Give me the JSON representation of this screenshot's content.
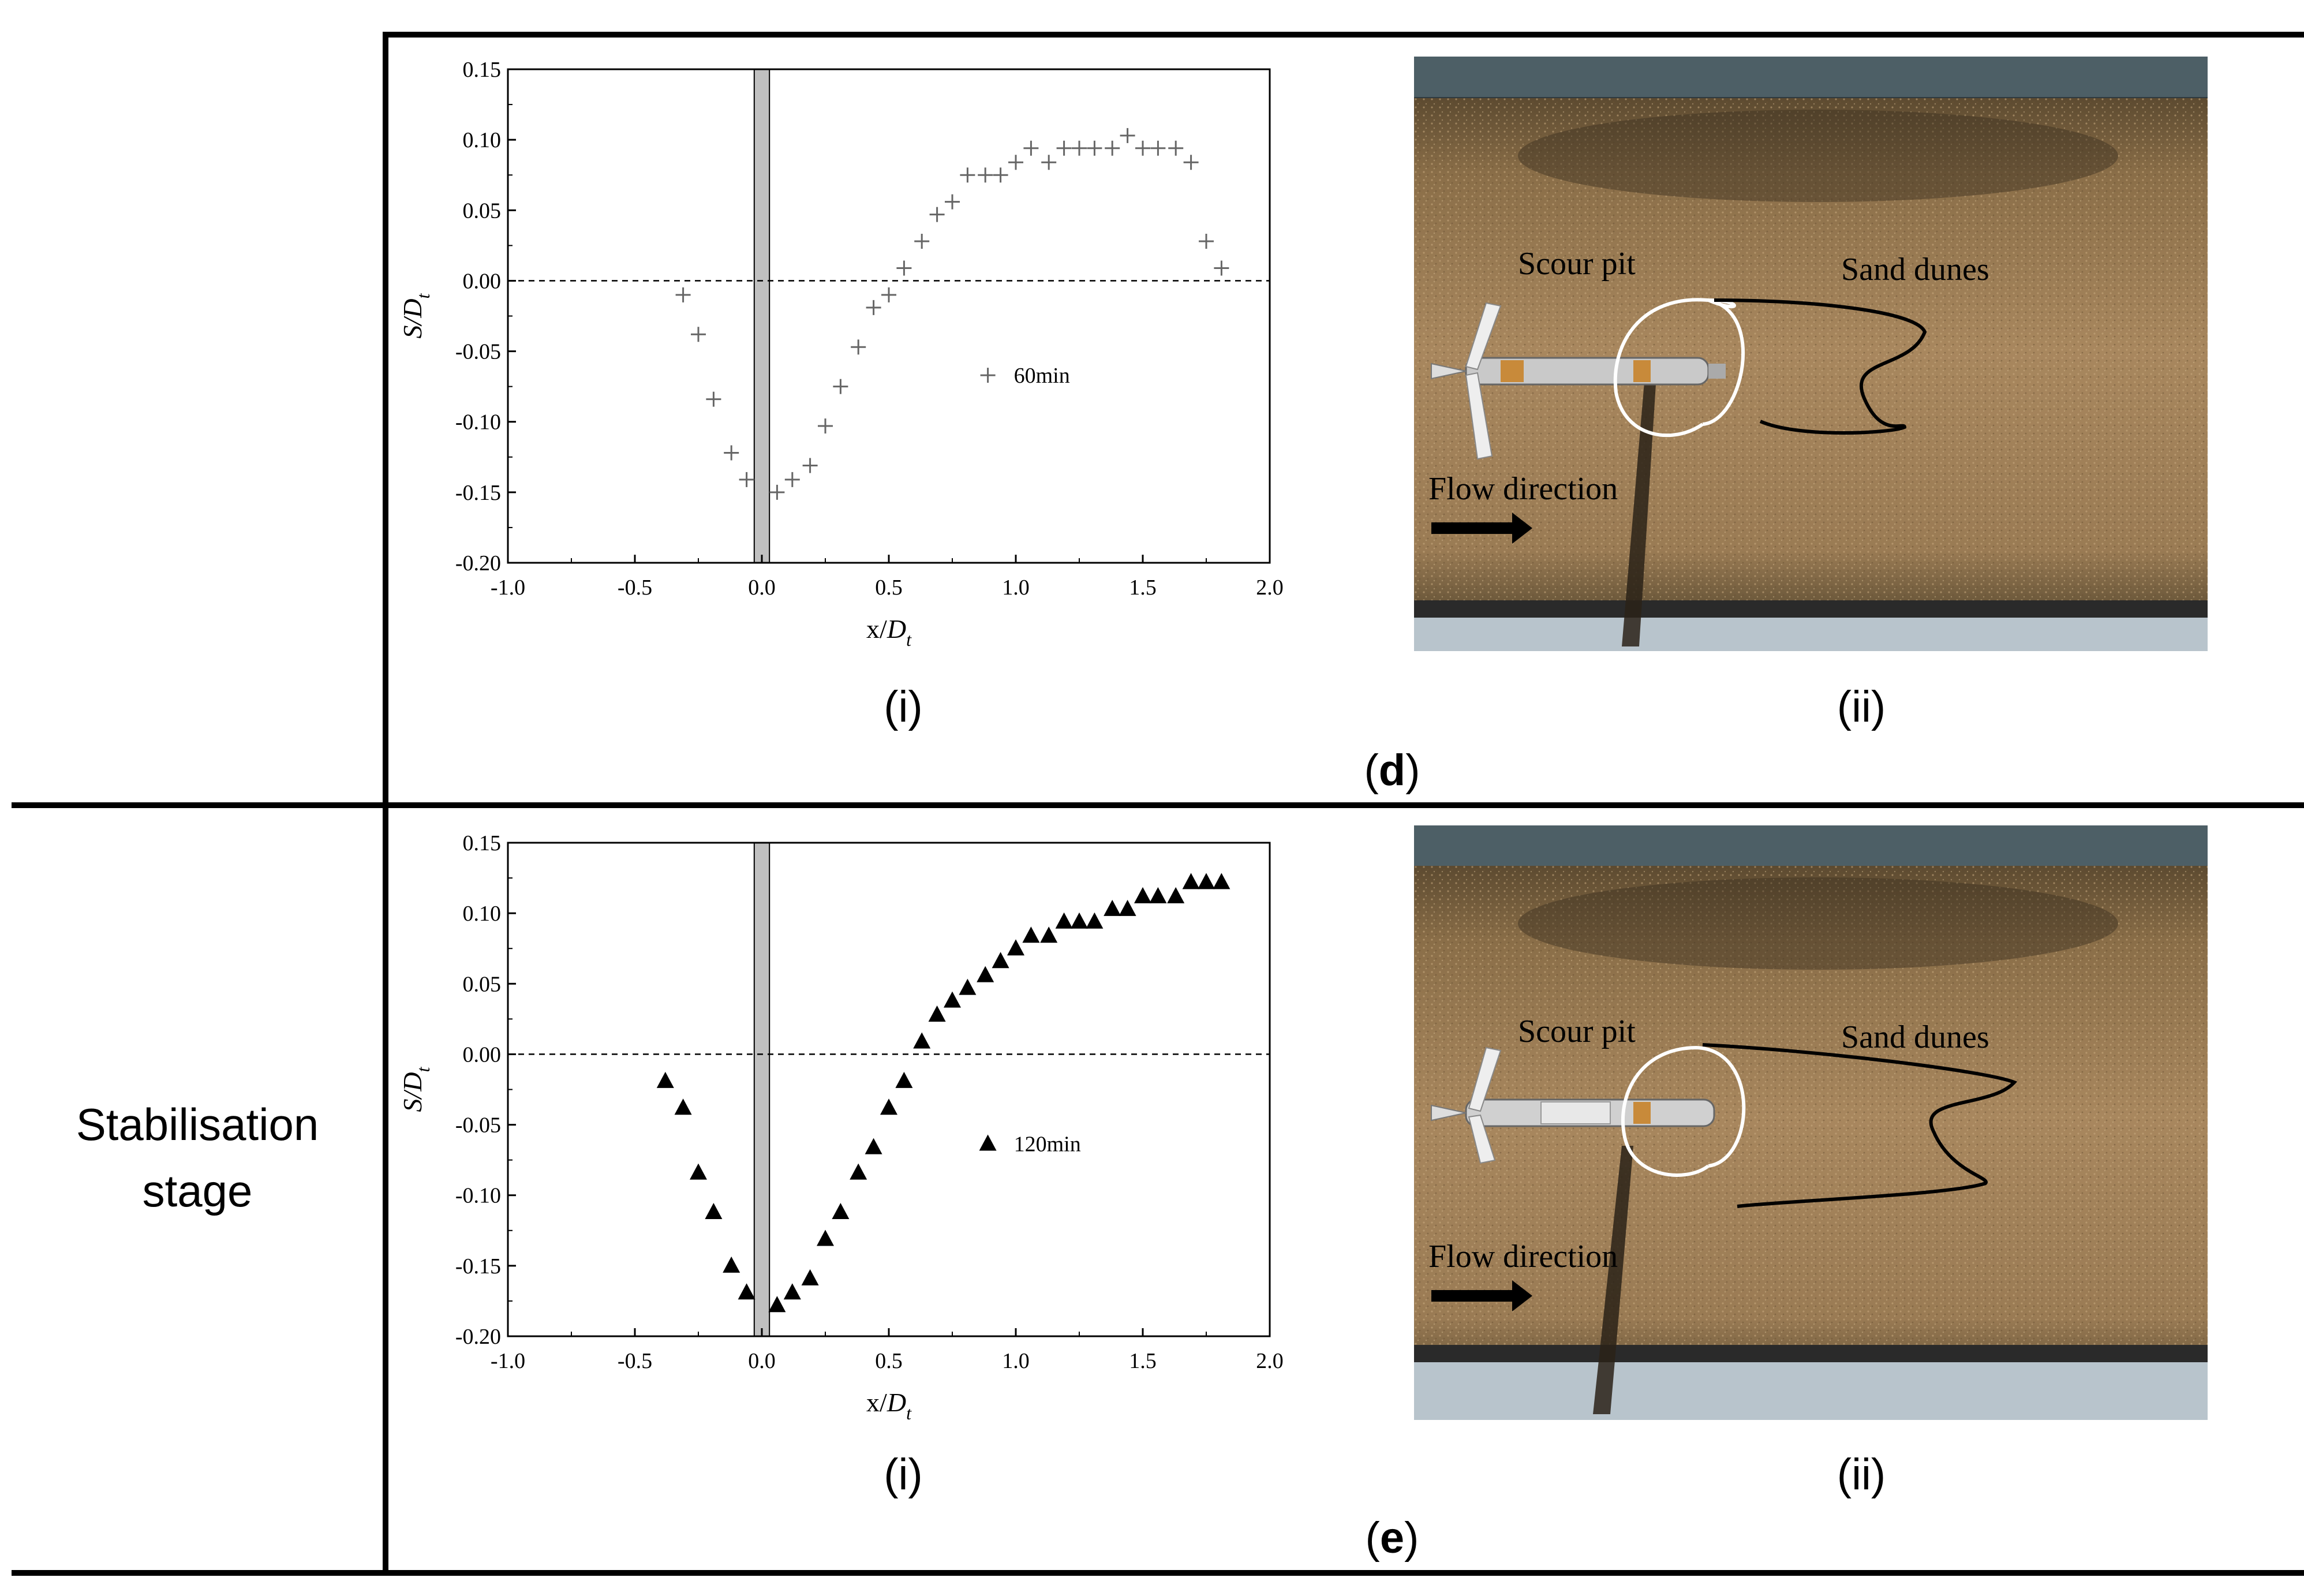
{
  "row_d": {
    "stage_label": "",
    "letter": "d",
    "left_caption": "(i)",
    "right_caption": "(ii)",
    "photo_labels": {
      "scour_pit": "Scour pit",
      "sand_dunes": "Sand dunes",
      "flow_direction": "Flow direction"
    }
  },
  "row_e": {
    "stage_label_line1": "Stabilisation",
    "stage_label_line2": "stage",
    "letter": "e",
    "left_caption": "(i)",
    "right_caption": "(ii)",
    "photo_labels": {
      "scour_pit": "Scour pit",
      "sand_dunes": "Sand dunes",
      "flow_direction": "Flow direction"
    }
  },
  "colors": {
    "grid_line": "#000000",
    "pile_fill": "#c0c0c0",
    "sand": "#a8875e",
    "marker_d": "#666666",
    "marker_e": "#000000"
  },
  "chart_data": [
    {
      "type": "scatter",
      "marker": "plus",
      "xlabel": "x/D",
      "xlabel_sub": "t",
      "ylabel": "S/D",
      "ylabel_sub": "t",
      "xlim": [
        -1.0,
        2.0
      ],
      "ylim": [
        -0.2,
        0.15
      ],
      "xticks": [
        "-1.0",
        "-0.5",
        "0.0",
        "0.5",
        "1.0",
        "1.5",
        "2.0"
      ],
      "yticks": [
        "0.15",
        "0.10",
        "0.05",
        "0.00",
        "-0.05",
        "-0.10",
        "-0.15",
        "-0.20"
      ],
      "pile_band": [
        -0.03,
        0.03
      ],
      "reference_line_y": 0.0,
      "series": [
        {
          "name": "60min",
          "x": [
            -0.31,
            -0.25,
            -0.19,
            -0.12,
            -0.06,
            0.06,
            0.12,
            0.19,
            0.25,
            0.31,
            0.38,
            0.44,
            0.5,
            0.56,
            0.63,
            0.69,
            0.75,
            0.81,
            0.88,
            0.94,
            1.0,
            1.06,
            1.13,
            1.19,
            1.25,
            1.31,
            1.38,
            1.44,
            1.5,
            1.56,
            1.63,
            1.69,
            1.75,
            1.81
          ],
          "y": [
            -0.01,
            -0.038,
            -0.084,
            -0.122,
            -0.141,
            -0.15,
            -0.141,
            -0.131,
            -0.103,
            -0.075,
            -0.047,
            -0.019,
            -0.01,
            0.009,
            0.028,
            0.047,
            0.056,
            0.075,
            0.075,
            0.075,
            0.084,
            0.094,
            0.084,
            0.094,
            0.094,
            0.094,
            0.094,
            0.103,
            0.094,
            0.094,
            0.094,
            0.084,
            0.028,
            0.009
          ]
        }
      ]
    },
    {
      "type": "scatter",
      "marker": "triangle",
      "xlabel": "x/D",
      "xlabel_sub": "t",
      "ylabel": "S/D",
      "ylabel_sub": "t",
      "xlim": [
        -1.0,
        2.0
      ],
      "ylim": [
        -0.2,
        0.15
      ],
      "xticks": [
        "-1.0",
        "-0.5",
        "0.0",
        "0.5",
        "1.0",
        "1.5",
        "2.0"
      ],
      "yticks": [
        "0.15",
        "0.10",
        "0.05",
        "0.00",
        "-0.05",
        "-0.10",
        "-0.15",
        "-0.20"
      ],
      "pile_band": [
        -0.03,
        0.03
      ],
      "reference_line_y": 0.0,
      "series": [
        {
          "name": "120min",
          "x": [
            -0.38,
            -0.31,
            -0.25,
            -0.19,
            -0.12,
            -0.06,
            0.06,
            0.12,
            0.19,
            0.25,
            0.31,
            0.38,
            0.44,
            0.5,
            0.56,
            0.63,
            0.69,
            0.75,
            0.81,
            0.88,
            0.94,
            1.0,
            1.06,
            1.13,
            1.19,
            1.25,
            1.31,
            1.38,
            1.44,
            1.5,
            1.56,
            1.63,
            1.69,
            1.75,
            1.81
          ],
          "y": [
            -0.019,
            -0.038,
            -0.084,
            -0.112,
            -0.15,
            -0.169,
            -0.178,
            -0.169,
            -0.159,
            -0.131,
            -0.112,
            -0.084,
            -0.066,
            -0.038,
            -0.019,
            0.009,
            0.028,
            0.038,
            0.047,
            0.056,
            0.066,
            0.075,
            0.084,
            0.084,
            0.094,
            0.094,
            0.094,
            0.103,
            0.103,
            0.112,
            0.112,
            0.112,
            0.122,
            0.122,
            0.122
          ]
        }
      ]
    }
  ]
}
